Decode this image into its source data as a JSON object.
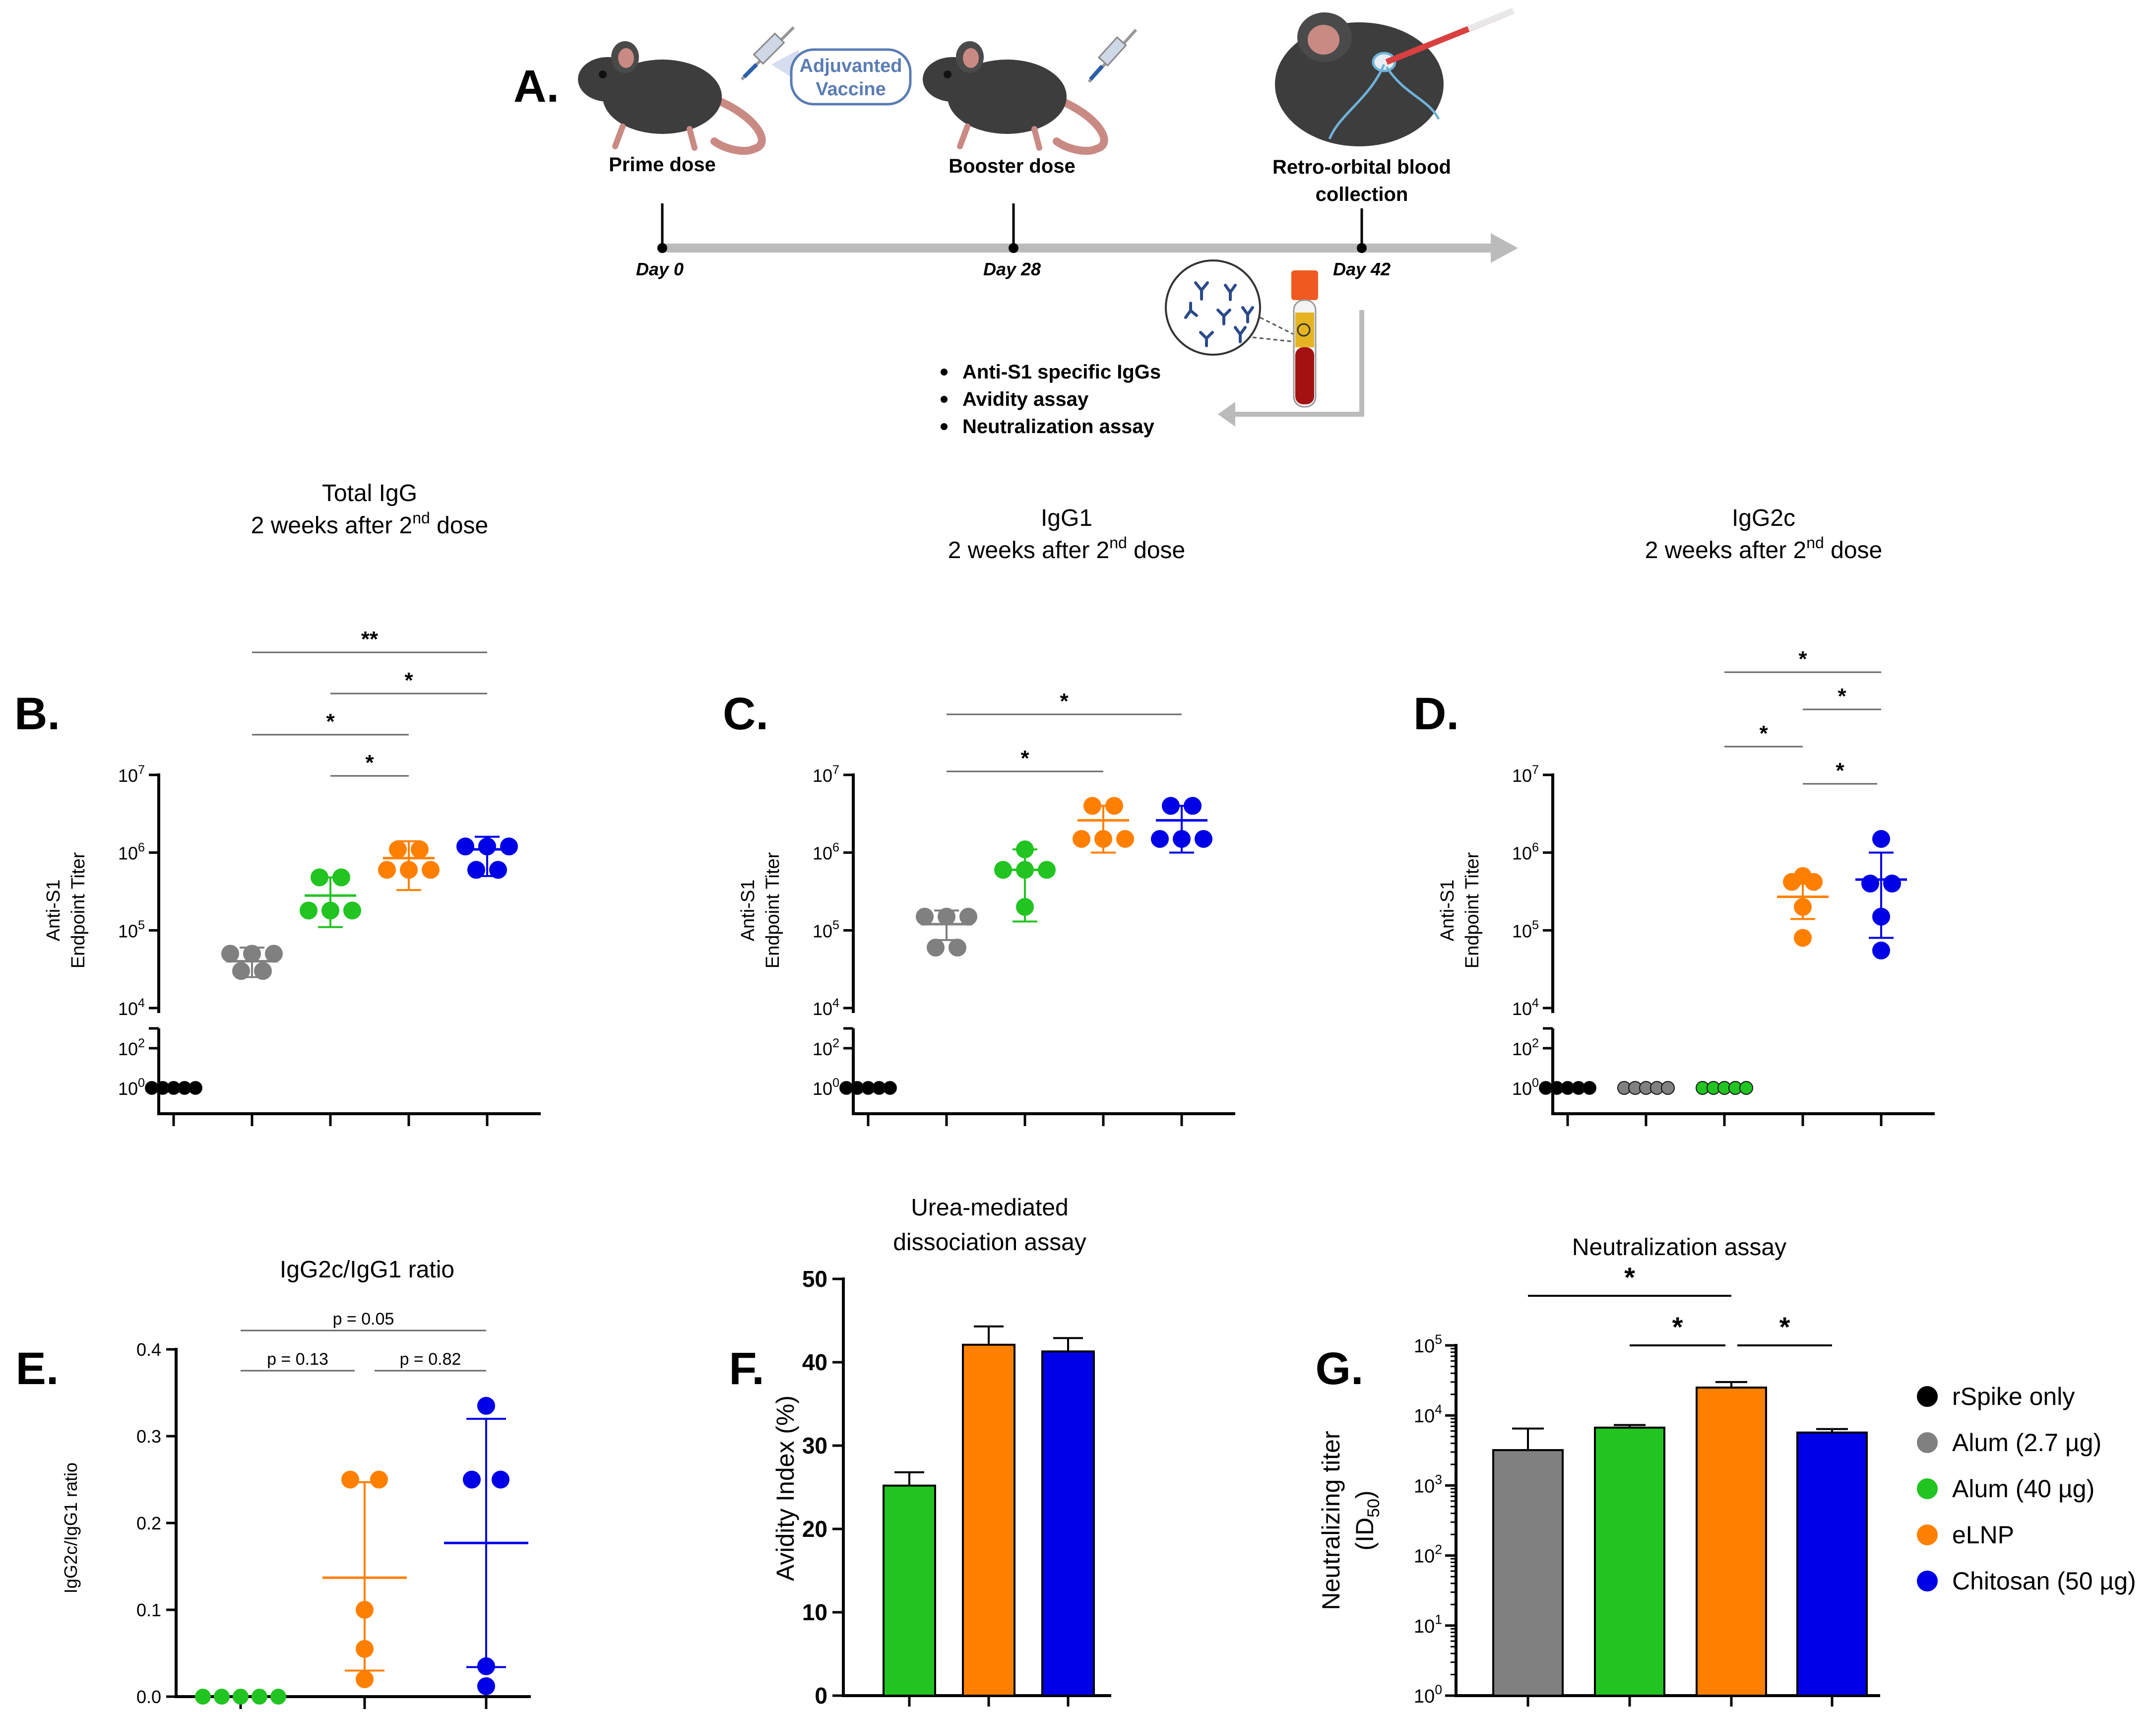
{
  "colors": {
    "black": "#000000",
    "gray": "#808080",
    "green": "#22c422",
    "orange": "#ff8000",
    "blue": "#0000e6",
    "timeline": "#bbbbbb"
  },
  "panelA": {
    "letter": "A.",
    "bubble": [
      "Adjuvanted",
      "Vaccine"
    ],
    "prime": "Prime dose",
    "booster": "Booster dose",
    "retro": [
      "Retro-orbital blood",
      "collection"
    ],
    "days": [
      "Day 0",
      "Day 28",
      "Day 42"
    ],
    "bullets": [
      "Anti-S1 specific IgGs",
      "Avidity assay",
      "Neutralization assay"
    ]
  },
  "chart_data": [
    {
      "id": "B",
      "letter": "B.",
      "type": "scatter",
      "title": [
        "Total IgG",
        "2 weeks after 2",
        "nd",
        " dose"
      ],
      "ylabel": [
        "Anti-S1",
        "Endpoint Titer"
      ],
      "yscale": "log-broken",
      "upper_ticks": [
        [
          "10",
          "7"
        ],
        [
          "10",
          "6"
        ],
        [
          "10",
          "5"
        ],
        [
          "10",
          "4"
        ]
      ],
      "lower_ticks": [
        [
          "10",
          "2"
        ],
        [
          "10",
          "0"
        ]
      ],
      "groups": [
        {
          "name": "rSpike only",
          "color": "black",
          "points": [
            1,
            1,
            1,
            1,
            1
          ]
        },
        {
          "name": "Alum (2.7 µg)",
          "color": "gray",
          "mean": 40000,
          "err": [
            25000,
            60000
          ],
          "points": [
            50000,
            50000,
            50000,
            30000,
            30000
          ]
        },
        {
          "name": "Alum (40 µg)",
          "color": "green",
          "mean": 280000,
          "err": [
            110000,
            480000
          ],
          "points": [
            480000,
            480000,
            180000,
            180000,
            180000
          ]
        },
        {
          "name": "eLNP",
          "color": "orange",
          "mean": 850000,
          "err": [
            330000,
            1400000
          ],
          "points": [
            1100000,
            1100000,
            600000,
            600000,
            600000
          ]
        },
        {
          "name": "Chitosan (50 µg)",
          "color": "blue",
          "mean": 1100000,
          "err": [
            500000,
            1600000
          ],
          "points": [
            1200000,
            1200000,
            1200000,
            600000,
            600000
          ]
        }
      ],
      "sig": [
        {
          "from": 1,
          "to": 4,
          "label": "**"
        },
        {
          "from": 2,
          "to": 4,
          "label": "*"
        },
        {
          "from": 1,
          "to": 3,
          "label": "*"
        },
        {
          "from": 2,
          "to": 3,
          "label": "*"
        }
      ]
    },
    {
      "id": "C",
      "letter": "C.",
      "type": "scatter",
      "title": [
        "IgG1",
        "2 weeks after 2",
        "nd",
        " dose"
      ],
      "ylabel": [
        "Anti-S1",
        "Endpoint Titer"
      ],
      "yscale": "log-broken",
      "upper_ticks": [
        [
          "10",
          "7"
        ],
        [
          "10",
          "6"
        ],
        [
          "10",
          "5"
        ],
        [
          "10",
          "4"
        ]
      ],
      "lower_ticks": [
        [
          "10",
          "2"
        ],
        [
          "10",
          "0"
        ]
      ],
      "groups": [
        {
          "name": "rSpike only",
          "color": "black",
          "points": [
            1,
            1,
            1,
            1,
            1
          ]
        },
        {
          "name": "Alum (2.7 µg)",
          "color": "gray",
          "mean": 120000,
          "err": [
            75000,
            180000
          ],
          "points": [
            150000,
            150000,
            150000,
            60000,
            60000
          ]
        },
        {
          "name": "Alum (40 µg)",
          "color": "green",
          "mean": 600000,
          "err": [
            130000,
            1100000
          ],
          "points": [
            1100000,
            600000,
            600000,
            600000,
            200000
          ]
        },
        {
          "name": "eLNP",
          "color": "orange",
          "mean": 2600000,
          "err": [
            1000000,
            4000000
          ],
          "points": [
            4000000,
            4000000,
            1500000,
            1500000,
            1500000
          ]
        },
        {
          "name": "Chitosan (50 µg)",
          "color": "blue",
          "mean": 2600000,
          "err": [
            1000000,
            4000000
          ],
          "points": [
            4000000,
            4000000,
            1500000,
            1500000,
            1500000
          ]
        }
      ],
      "sig": [
        {
          "from": 1,
          "to": 4,
          "label": "*"
        },
        {
          "from": 1,
          "to": 3,
          "label": "*"
        }
      ]
    },
    {
      "id": "D",
      "letter": "D.",
      "type": "scatter",
      "title": [
        "IgG2c",
        "2 weeks after 2",
        "nd",
        " dose"
      ],
      "ylabel": [
        "Anti-S1",
        "Endpoint Titer"
      ],
      "yscale": "log-broken",
      "upper_ticks": [
        [
          "10",
          "7"
        ],
        [
          "10",
          "6"
        ],
        [
          "10",
          "5"
        ],
        [
          "10",
          "4"
        ]
      ],
      "lower_ticks": [
        [
          "10",
          "2"
        ],
        [
          "10",
          "0"
        ]
      ],
      "groups": [
        {
          "name": "rSpike only",
          "color": "black",
          "points": [
            1,
            1,
            1,
            1,
            1
          ]
        },
        {
          "name": "Alum (2.7 µg)",
          "color": "gray",
          "points": [
            1,
            1,
            1,
            1,
            1
          ]
        },
        {
          "name": "Alum (40 µg)",
          "color": "green",
          "points": [
            1,
            1,
            1,
            1,
            1
          ]
        },
        {
          "name": "eLNP",
          "color": "orange",
          "mean": 270000,
          "err": [
            140000,
            400000
          ],
          "points": [
            500000,
            420000,
            420000,
            200000,
            80000
          ]
        },
        {
          "name": "Chitosan (50 µg)",
          "color": "blue",
          "mean": 450000,
          "err": [
            80000,
            1000000
          ],
          "points": [
            1500000,
            400000,
            400000,
            150000,
            55000
          ]
        }
      ],
      "sig": [
        {
          "from": 2,
          "to": 4,
          "label": "*"
        },
        {
          "from": 3,
          "to": 4,
          "label": "*"
        },
        {
          "from": 2,
          "to": 3,
          "label": "*"
        },
        {
          "from": 3,
          "to": 3.95,
          "label": "*"
        }
      ]
    },
    {
      "id": "E",
      "letter": "E.",
      "type": "scatter",
      "title": [
        "IgG2c/IgG1 ratio"
      ],
      "ylabel": [
        "IgG2c/IgG1 ratio"
      ],
      "ylim": [
        0,
        0.4
      ],
      "yticks": [
        "0.0",
        "0.1",
        "0.2",
        "0.3",
        "0.4"
      ],
      "groups": [
        {
          "name": "Alum (40 µg)",
          "color": "green",
          "points": [
            0,
            0,
            0,
            0,
            0
          ]
        },
        {
          "name": "eLNP",
          "color": "orange",
          "mean": 0.137,
          "err": [
            0.03,
            0.247
          ],
          "points": [
            0.25,
            0.25,
            0.1,
            0.055,
            0.02
          ]
        },
        {
          "name": "Chitosan (50 µg)",
          "color": "blue",
          "mean": 0.177,
          "err": [
            0.034,
            0.32
          ],
          "points": [
            0.335,
            0.25,
            0.25,
            0.035,
            0.012
          ]
        }
      ],
      "sig": [
        {
          "from": 0,
          "to": 2,
          "label": "p = 0.05"
        },
        {
          "from": 0,
          "to": 1,
          "label": "p = 0.13"
        },
        {
          "from": 1,
          "to": 2,
          "label": "p = 0.82"
        }
      ]
    },
    {
      "id": "F",
      "letter": "F.",
      "type": "bar",
      "title": [
        "Urea-mediated",
        "dissociation assay"
      ],
      "ylabel": "Avidity Index (%)",
      "ylim": [
        0,
        50
      ],
      "yticks": [
        "0",
        "10",
        "20",
        "30",
        "40",
        "50"
      ],
      "categories": [
        "Alum (40 µg)",
        "eLNP",
        "Chitosan (50 µg)"
      ],
      "colors": [
        "green",
        "orange",
        "blue"
      ],
      "values": [
        25.2,
        42.1,
        41.3
      ],
      "errors": [
        1.6,
        2.2,
        1.6
      ]
    },
    {
      "id": "G",
      "letter": "G.",
      "type": "bar",
      "title": [
        "Neutralization assay"
      ],
      "ylabel": [
        "Neutralizing titer",
        "(ID",
        "50",
        ")"
      ],
      "yscale": "log",
      "ylim": [
        1,
        100000
      ],
      "yticks": [
        [
          "10",
          "0"
        ],
        [
          "10",
          "1"
        ],
        [
          "10",
          "2"
        ],
        [
          "10",
          "3"
        ],
        [
          "10",
          "4"
        ],
        [
          "10",
          "5"
        ]
      ],
      "categories": [
        "Alum (2.7 µg)",
        "Alum (40 µg)",
        "eLNP",
        "Chitosan (50 µg)"
      ],
      "colors": [
        "gray",
        "green",
        "orange",
        "blue"
      ],
      "values": [
        3200,
        6700,
        25000,
        5700
      ],
      "errors_upper": [
        6500,
        7300,
        30000,
        6400
      ],
      "sig": [
        {
          "from": 0,
          "to": 2,
          "label": "*"
        },
        {
          "from": 1,
          "to": 2,
          "label": "*"
        },
        {
          "from": 2,
          "to": 3,
          "label": "*"
        }
      ]
    }
  ],
  "legend": [
    {
      "label": "rSpike only",
      "color": "black"
    },
    {
      "label": "Alum (2.7 µg)",
      "color": "gray"
    },
    {
      "label": "Alum (40 µg)",
      "color": "green"
    },
    {
      "label": "eLNP",
      "color": "orange"
    },
    {
      "label": "Chitosan (50 µg)",
      "color": "blue"
    }
  ]
}
